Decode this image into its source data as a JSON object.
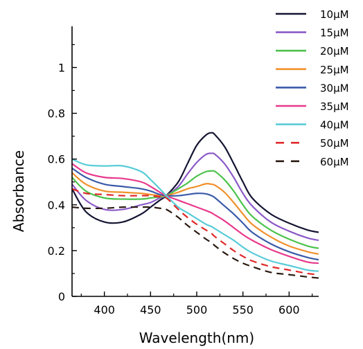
{
  "chart_data": {
    "type": "line",
    "xlabel": "Wavelength(nm)",
    "ylabel": "Absorbance",
    "xlim": [
      365,
      632
    ],
    "ylim": [
      0,
      1.18
    ],
    "xticks": [
      400,
      450,
      500,
      550,
      600
    ],
    "yticks": [
      0,
      0.2,
      0.4,
      0.6,
      0.8,
      1
    ],
    "ytick_labels": [
      "0",
      "0.2",
      "0.4",
      "0.6",
      "0.8",
      "1"
    ],
    "x_minor_ticks": [
      375,
      425,
      475,
      525,
      575,
      625
    ],
    "y_minor_ticks": [
      0.1,
      0.3,
      0.5,
      0.7,
      0.9,
      1.1
    ],
    "grid": false,
    "legend_position": "top-right, outside plot",
    "x": [
      365,
      380,
      400,
      420,
      440,
      450,
      460,
      467,
      480,
      490,
      500,
      510,
      516,
      520,
      530,
      540,
      550,
      560,
      580,
      600,
      620,
      632
    ],
    "series": [
      {
        "name": "10μM",
        "color": "#141432",
        "dash": "solid",
        "values": [
          0.47,
          0.37,
          0.325,
          0.325,
          0.36,
          0.39,
          0.42,
          0.44,
          0.5,
          0.58,
          0.66,
          0.705,
          0.715,
          0.705,
          0.655,
          0.58,
          0.5,
          0.43,
          0.36,
          0.32,
          0.29,
          0.28
        ]
      },
      {
        "name": "15μM",
        "color": "#8c5ac8",
        "dash": "solid",
        "values": [
          0.49,
          0.42,
          0.38,
          0.38,
          0.4,
          0.41,
          0.43,
          0.44,
          0.48,
          0.535,
          0.585,
          0.62,
          0.625,
          0.62,
          0.58,
          0.52,
          0.45,
          0.395,
          0.325,
          0.285,
          0.255,
          0.245
        ]
      },
      {
        "name": "20μM",
        "color": "#4cc24c",
        "dash": "solid",
        "values": [
          0.52,
          0.46,
          0.43,
          0.425,
          0.425,
          0.43,
          0.435,
          0.44,
          0.47,
          0.495,
          0.525,
          0.545,
          0.548,
          0.545,
          0.51,
          0.46,
          0.4,
          0.35,
          0.29,
          0.25,
          0.22,
          0.21
        ]
      },
      {
        "name": "25μM",
        "color": "#f0902a",
        "dash": "solid",
        "values": [
          0.54,
          0.49,
          0.46,
          0.455,
          0.45,
          0.445,
          0.44,
          0.44,
          0.455,
          0.47,
          0.48,
          0.492,
          0.49,
          0.485,
          0.455,
          0.41,
          0.36,
          0.315,
          0.26,
          0.22,
          0.195,
          0.185
        ]
      },
      {
        "name": "30μM",
        "color": "#3a5aa8",
        "dash": "solid",
        "values": [
          0.56,
          0.52,
          0.49,
          0.48,
          0.47,
          0.46,
          0.445,
          0.44,
          0.44,
          0.445,
          0.45,
          0.448,
          0.44,
          0.43,
          0.395,
          0.36,
          0.32,
          0.28,
          0.23,
          0.195,
          0.17,
          0.16
        ]
      },
      {
        "name": "35μM",
        "color": "#e8398c",
        "dash": "solid",
        "values": [
          0.58,
          0.54,
          0.52,
          0.515,
          0.5,
          0.48,
          0.455,
          0.44,
          0.42,
          0.405,
          0.39,
          0.375,
          0.365,
          0.355,
          0.33,
          0.3,
          0.27,
          0.245,
          0.205,
          0.175,
          0.15,
          0.145
        ]
      },
      {
        "name": "40μM",
        "color": "#58ccd8",
        "dash": "solid",
        "values": [
          0.6,
          0.575,
          0.57,
          0.57,
          0.545,
          0.51,
          0.47,
          0.44,
          0.39,
          0.365,
          0.34,
          0.315,
          0.305,
          0.295,
          0.27,
          0.245,
          0.215,
          0.19,
          0.155,
          0.135,
          0.115,
          0.11
        ]
      },
      {
        "name": "50μM",
        "color": "#e02828",
        "dash": "dashed",
        "values": [
          0.47,
          0.45,
          0.445,
          0.44,
          0.44,
          0.44,
          0.435,
          0.43,
          0.38,
          0.345,
          0.315,
          0.29,
          0.275,
          0.26,
          0.23,
          0.2,
          0.175,
          0.155,
          0.13,
          0.115,
          0.1,
          0.095
        ]
      },
      {
        "name": "60μM",
        "color": "#2a1a12",
        "dash": "dashed",
        "values": [
          0.39,
          0.385,
          0.385,
          0.39,
          0.39,
          0.39,
          0.385,
          0.38,
          0.345,
          0.31,
          0.28,
          0.25,
          0.235,
          0.22,
          0.19,
          0.165,
          0.145,
          0.13,
          0.105,
          0.095,
          0.085,
          0.08
        ]
      }
    ]
  }
}
